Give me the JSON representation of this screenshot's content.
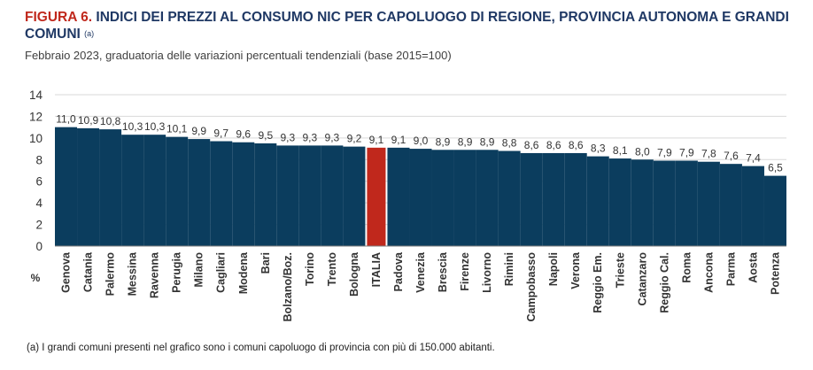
{
  "title": {
    "prefix": "FIGURA 6.",
    "text": " INDICI DEI PREZZI AL CONSUMO NIC PER CAPOLUOGO DI REGIONE, PROVINCIA AUTONOMA E GRANDI COMUNI ",
    "note": "(a)"
  },
  "subtitle": "Febbraio 2023, graduatoria delle variazioni percentuali tendenziali (base 2015=100)",
  "footnote": "(a)  I grandi comuni presenti nel grafico sono i comuni capoluogo di provincia con più di 150.000 abitanti.",
  "colors": {
    "bar": "#0b3d5e",
    "highlight": "#c0281c",
    "grid": "#d9d9d9"
  },
  "chart_data": {
    "type": "bar",
    "title": "",
    "xlabel": "",
    "ylabel": "%",
    "ylim": [
      0,
      14
    ],
    "yticks": [
      "0",
      "2",
      "4",
      "6",
      "8",
      "10",
      "12",
      "14"
    ],
    "grid": true,
    "highlight_category": "ITALIA",
    "categories": [
      "Genova",
      "Catania",
      "Palermo",
      "Messina",
      "Ravenna",
      "Perugia",
      "Milano",
      "Cagliari",
      "Modena",
      "Bari",
      "Bolzano/Boz.",
      "Torino",
      "Trento",
      "Bologna",
      "ITALIA",
      "Padova",
      "Venezia",
      "Brescia",
      "Firenze",
      "Livorno",
      "Rimini",
      "Campobasso",
      "Napoli",
      "Verona",
      "Reggio Em.",
      "Trieste",
      "Catanzaro",
      "Reggio Cal.",
      "Roma",
      "Ancona",
      "Parma",
      "Aosta",
      "Potenza"
    ],
    "values": [
      11.0,
      10.9,
      10.8,
      10.3,
      10.3,
      10.1,
      9.9,
      9.7,
      9.6,
      9.5,
      9.3,
      9.3,
      9.3,
      9.2,
      9.1,
      9.1,
      9.0,
      8.9,
      8.9,
      8.9,
      8.8,
      8.6,
      8.6,
      8.6,
      8.3,
      8.1,
      8.0,
      7.9,
      7.9,
      7.8,
      7.6,
      7.4,
      6.5
    ],
    "data_labels": [
      "11,0",
      "10,9",
      "10,8",
      "10,3",
      "10,3",
      "10,1",
      "9,9",
      "9,7",
      "9,6",
      "9,5",
      "9,3",
      "9,3",
      "9,3",
      "9,2",
      "9,1",
      "9,1",
      "9,0",
      "8,9",
      "8,9",
      "8,9",
      "8,8",
      "8,6",
      "8,6",
      "8,6",
      "8,3",
      "8,1",
      "8,0",
      "7,9",
      "7,9",
      "7,8",
      "7,6",
      "7,4",
      "6,5"
    ]
  }
}
